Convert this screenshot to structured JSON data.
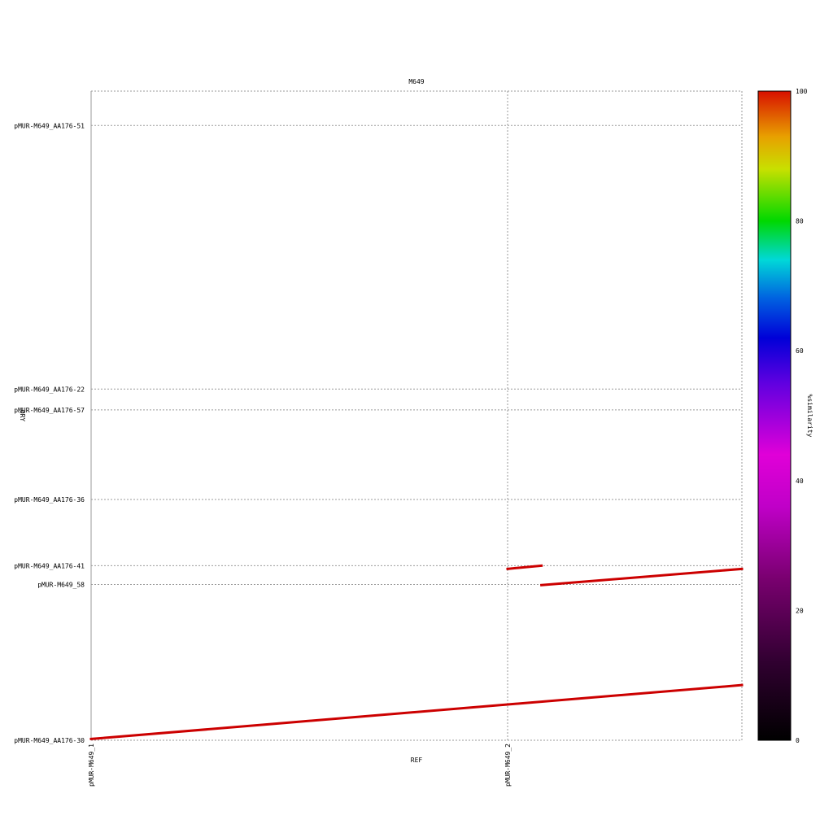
{
  "chart_data": {
    "type": "line",
    "title": "M649",
    "xlabel": "REF",
    "ylabel": "QRY",
    "colorbar": {
      "label": "%similarity",
      "range": [
        0,
        100
      ],
      "ticks": [
        0,
        20,
        40,
        60,
        80,
        100
      ]
    },
    "x_ticks": [
      {
        "label": "pMUR-M649_1",
        "value": 0
      },
      {
        "label": "pMUR-M649_2",
        "value": 64
      }
    ],
    "xlim": [
      0,
      100
    ],
    "y_ticks": [
      {
        "label": "pMUR-M649_AA176-30",
        "value": 0
      },
      {
        "label": "pMUR-M649_58",
        "value": 24
      },
      {
        "label": "pMUR-M649_AA176-41",
        "value": 26.9
      },
      {
        "label": "pMUR-M649_AA176-36",
        "value": 37.1
      },
      {
        "label": "pMUR-M649_AA176-57",
        "value": 50.9
      },
      {
        "label": "pMUR-M649_AA176-22",
        "value": 54.1
      },
      {
        "label": "pMUR-M649_AA176-51",
        "value": 94.7
      }
    ],
    "ylim": [
      0,
      100
    ],
    "grid": true,
    "series": [
      {
        "x": [
          0,
          100
        ],
        "y": [
          0.2,
          8.5
        ],
        "similarity": 100,
        "color": "#cc0000"
      },
      {
        "x": [
          64,
          69.2
        ],
        "y": [
          26.4,
          26.9
        ],
        "similarity": 100,
        "color": "#cc0000"
      },
      {
        "x": [
          69.2,
          100
        ],
        "y": [
          23.9,
          26.4
        ],
        "similarity": 100,
        "color": "#cc0000"
      }
    ]
  }
}
